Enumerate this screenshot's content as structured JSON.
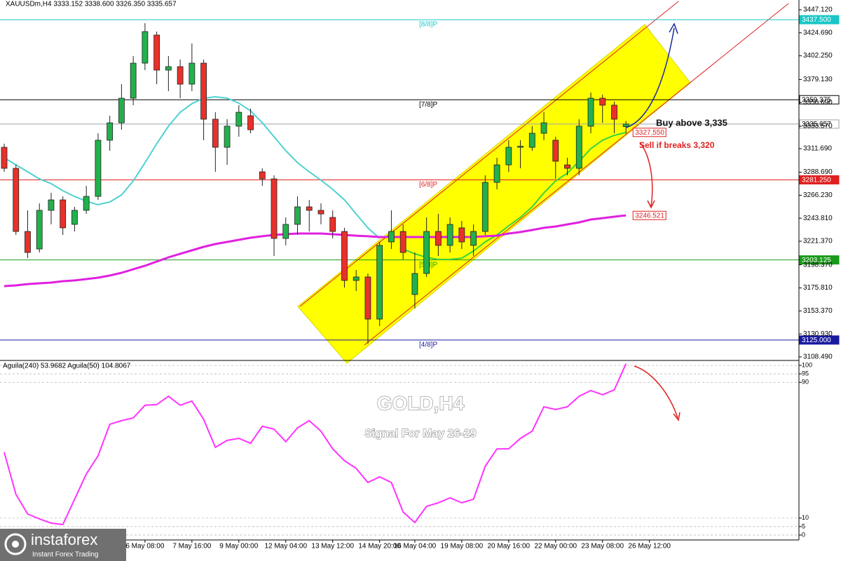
{
  "header": "XAUUSDm,H4  3333.152 3338.600 3326.350 3335.657",
  "chart_data": [
    {
      "type": "candlestick",
      "categories": [
        null,
        null,
        null,
        null,
        null,
        null,
        null,
        null,
        null,
        null,
        null,
        null,
        "6 May 08:00",
        null,
        null,
        null,
        "7 May 16:00",
        null,
        null,
        null,
        "9 May 00:00",
        null,
        null,
        null,
        "12 May 04:00",
        null,
        null,
        null,
        "13 May 12:00",
        null,
        null,
        null,
        "14 May 20:00",
        null,
        null,
        "16 May 04:00",
        null,
        null,
        null,
        "19 May 08:00",
        null,
        null,
        null,
        "20 May 16:00",
        null,
        null,
        null,
        "22 May 00:00",
        null,
        null,
        null,
        "23 May 08:00",
        null,
        null,
        null,
        "26 May 12:00"
      ],
      "open": [
        3313.0,
        3292.5,
        3230.9,
        3213.8,
        3251.5,
        3261.7,
        3237.8,
        3251.5,
        3265.1,
        3319.9,
        3336.9,
        3360.9,
        3395.1,
        3422.5,
        3388.3,
        3391.7,
        3374.6,
        3395.1,
        3340.4,
        3313.0,
        3333.6,
        3343.8,
        3289.1,
        3282.2,
        3224.1,
        3237.8,
        3254.9,
        3251.5,
        3244.6,
        3230.9,
        3183.1,
        3186.5,
        3145.4,
        3220.7,
        3230.9,
        3169.4,
        3189.9,
        3230.9,
        3217.3,
        3234.4,
        3217.3,
        3230.9,
        3278.8,
        3295.9,
        3313.0,
        3313.0,
        3326.7,
        3319.9,
        3295.9,
        3292.5,
        3333.6,
        3360.9,
        3354.1,
        3333.152,
        null,
        null
      ],
      "high": [
        3316.5,
        3295.9,
        3251.5,
        3258.3,
        3268.6,
        3265.1,
        3254.9,
        3275.4,
        3326.7,
        3343.8,
        3374.6,
        3402.0,
        3434.1,
        3425.9,
        3402.0,
        3398.6,
        3414.3,
        3398.6,
        3347.2,
        3340.4,
        3354.1,
        3350.7,
        3292.5,
        3285.7,
        3244.6,
        3265.1,
        3261.7,
        3258.3,
        3251.5,
        3234.4,
        3193.3,
        3189.9,
        3220.7,
        3251.5,
        3237.8,
        3210.4,
        3244.6,
        3248.0,
        3244.6,
        3241.2,
        3237.8,
        3285.7,
        3302.8,
        3319.9,
        3319.9,
        3333.6,
        3347.2,
        3323.3,
        3302.8,
        3340.4,
        3366.4,
        3364.4,
        3357.5,
        3338.6,
        null,
        null
      ],
      "low": [
        3289.1,
        3227.5,
        3204.9,
        3210.4,
        3237.8,
        3227.5,
        3230.9,
        3248.0,
        3261.7,
        3309.6,
        3330.1,
        3354.1,
        3388.3,
        3374.6,
        3367.8,
        3360.9,
        3367.8,
        3319.9,
        3289.1,
        3295.9,
        3323.3,
        3326.7,
        3275.4,
        3207.0,
        3217.3,
        3227.5,
        3230.9,
        3237.8,
        3224.1,
        3176.2,
        3172.8,
        3121.5,
        3138.6,
        3213.8,
        3203.6,
        3155.7,
        3186.5,
        3207.0,
        3210.4,
        3213.8,
        3207.0,
        3227.5,
        3272.0,
        3289.1,
        3292.5,
        3309.6,
        3319.9,
        3282.2,
        3285.7,
        3285.7,
        3326.7,
        3336.9,
        3326.7,
        3326.35,
        null,
        null
      ],
      "close": [
        3292.5,
        3230.9,
        3210.4,
        3251.5,
        3261.7,
        3234.4,
        3251.5,
        3265.1,
        3319.9,
        3336.9,
        3360.9,
        3395.1,
        3425.9,
        3388.3,
        3391.7,
        3374.6,
        3395.1,
        3340.4,
        3313.0,
        3333.6,
        3347.2,
        3330.1,
        3282.2,
        3224.1,
        3237.8,
        3254.9,
        3251.5,
        3248.0,
        3230.9,
        3183.1,
        3186.5,
        3145.4,
        3217.3,
        3230.9,
        3210.4,
        3189.9,
        3230.9,
        3217.3,
        3237.8,
        3220.7,
        3230.9,
        3278.8,
        3295.9,
        3313.0,
        3314.0,
        3326.7,
        3336.9,
        3299.4,
        3292.5,
        3333.6,
        3360.9,
        3354.1,
        3340.4,
        3335.657,
        null,
        null
      ],
      "up_color": "#22b14c",
      "down_color": "#e8312a",
      "ylim": [
        3105.75,
        3456.7
      ],
      "yticks": [
        {
          "value": 3447.12,
          "label": "3447.120"
        },
        {
          "value": 3424.69,
          "label": "3424.690"
        },
        {
          "value": 3402.25,
          "label": "3402.250"
        },
        {
          "value": 3379.13,
          "label": "3379.130"
        },
        {
          "value": 3356.69,
          "label": "3356.690"
        },
        {
          "value": 3333.57,
          "label": "3333.570"
        },
        {
          "value": 3311.69,
          "label": "3311.690"
        },
        {
          "value": 3288.69,
          "label": "3288.690"
        },
        {
          "value": 3266.23,
          "label": "3266.230"
        },
        {
          "value": 3243.81,
          "label": "3243.810"
        },
        {
          "value": 3221.37,
          "label": "3221.370"
        },
        {
          "value": 3198.37,
          "label": "3198.370"
        },
        {
          "value": 3175.81,
          "label": "3175.810"
        },
        {
          "value": 3153.37,
          "label": "3153.370"
        },
        {
          "value": 3130.93,
          "label": "3130.930"
        },
        {
          "value": 3108.49,
          "label": "3108.490"
        }
      ],
      "overlays": [
        {
          "color": "#4fd1d1",
          "values": [
            3302.8,
            3295.9,
            3289.1,
            3282.2,
            3277.5,
            3270.6,
            3265.1,
            3260.4,
            3257.0,
            3259.7,
            3266.5,
            3280.2,
            3298.0,
            3316.5,
            3333.6,
            3347.2,
            3355.5,
            3360.9,
            3362.3,
            3360.9,
            3356.1,
            3348.6,
            3336.9,
            3323.3,
            3309.6,
            3298.0,
            3289.1,
            3280.9,
            3272.0,
            3261.7,
            3248.0,
            3234.4,
            3224.1,
            null,
            null,
            null,
            null,
            null,
            null,
            null,
            null,
            null,
            null,
            null,
            null,
            null,
            null,
            null,
            null,
            null,
            null,
            null,
            null,
            null,
            null,
            null
          ]
        },
        {
          "color": "#3cd23c",
          "last_label": "3327.550",
          "values": [
            null,
            null,
            null,
            null,
            null,
            null,
            null,
            null,
            null,
            null,
            null,
            null,
            null,
            null,
            null,
            null,
            null,
            null,
            null,
            null,
            null,
            null,
            null,
            null,
            null,
            null,
            null,
            null,
            null,
            null,
            null,
            null,
            null,
            null,
            3213.8,
            3209.1,
            3205.6,
            3203.6,
            3203.6,
            3204.9,
            3211.8,
            3220.7,
            3227.5,
            3236.4,
            3244.6,
            3254.9,
            3268.6,
            3280.2,
            3287.7,
            3299.4,
            3311.7,
            3319.9,
            3324.7,
            3327.55,
            null,
            null
          ]
        },
        {
          "color": "#e020e0",
          "last_label": "3246.521",
          "values": [
            3177.6,
            3178.3,
            3179.6,
            3180.3,
            3181.0,
            3182.4,
            3183.1,
            3184.4,
            3185.8,
            3187.9,
            3190.6,
            3194.0,
            3197.4,
            3201.5,
            3205.6,
            3209.1,
            3212.5,
            3215.9,
            3218.6,
            3220.7,
            3222.7,
            3224.8,
            3226.2,
            3227.5,
            3228.2,
            3228.9,
            3228.9,
            3228.9,
            3228.2,
            3227.5,
            3226.8,
            3226.2,
            3225.5,
            3225.5,
            3225.5,
            3225.5,
            3225.5,
            3225.5,
            3225.5,
            3225.5,
            3225.5,
            3226.2,
            3226.8,
            3228.9,
            3230.3,
            3232.3,
            3234.4,
            3235.7,
            3237.8,
            3239.8,
            3242.6,
            3243.9,
            3245.3,
            3246.521,
            null,
            null
          ]
        }
      ],
      "levels": [
        {
          "label": "[8/8]P",
          "value": 3437.5,
          "value_label": "3437.500",
          "color": "#19c6c6"
        },
        {
          "label": "[7/8]P",
          "value": 3359.375,
          "value_label": "3359.375",
          "color": "#000000"
        },
        {
          "label": "[6/8]P",
          "value": 3281.25,
          "value_label": "3281.250",
          "color": "#e02020"
        },
        {
          "label": "[5/8]P",
          "value": 3203.125,
          "value_label": "3203.125",
          "color": "#1a9a1a"
        },
        {
          "label": "[4/8]P",
          "value": 3125,
          "value_label": "3125.000",
          "color": "#1a1aa0"
        }
      ],
      "current_price": {
        "value": 3335.657,
        "label": "3335.657",
        "color": "#9aa3ad"
      },
      "annotations": [
        "Buy above 3,335",
        "Sell if breaks 3,320"
      ]
    },
    {
      "type": "line",
      "title": "Aguila(240) 53.9682  Aguila(50) 104.8067",
      "color": "#ff33ff",
      "values": [
        48.8,
        24.0,
        12.4,
        9.5,
        7.0,
        6.2,
        21.1,
        36.0,
        46.7,
        65.3,
        67.4,
        69.0,
        76.5,
        76.9,
        81.8,
        76.5,
        79.0,
        68.2,
        51.7,
        55.8,
        57.0,
        54.1,
        64.1,
        62.4,
        55.0,
        63.2,
        67.4,
        61.2,
        50.8,
        43.8,
        39.3,
        31.0,
        34.3,
        31.0,
        13.6,
        7.4,
        16.9,
        19.0,
        21.9,
        19.0,
        21.1,
        40.5,
        50.8,
        50.8,
        57.0,
        61.2,
        75.6,
        74.0,
        75.6,
        81.8,
        85.2,
        82.7,
        85.6,
        101.0,
        null,
        null
      ],
      "ylim": [
        -2.9,
        102.5
      ],
      "yticks": [
        100,
        95,
        90,
        10,
        5,
        0
      ]
    }
  ],
  "watermark": {
    "title": "GOLD,H4",
    "subtitle": "Signal For May 26-29"
  },
  "logo": {
    "name": "instaforex",
    "tagline": "Instant Forex Trading"
  }
}
